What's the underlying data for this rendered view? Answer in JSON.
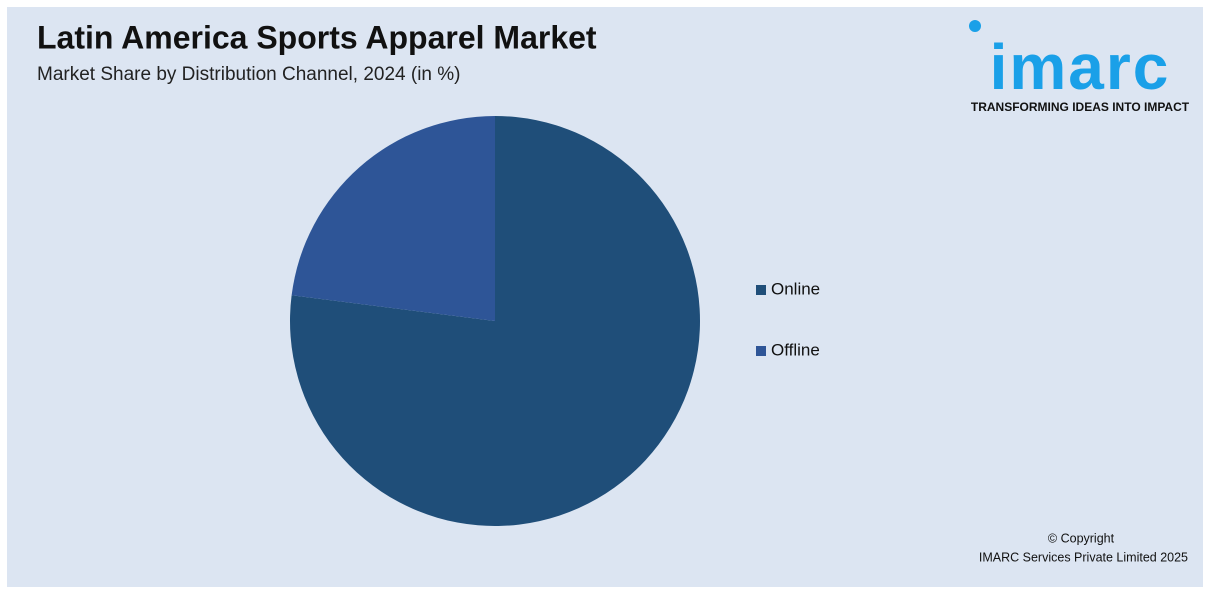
{
  "chart_data": {
    "type": "pie",
    "title": "Latin America Sports Apparel Market",
    "subtitle": "Market Share by Distribution Channel, 2024 (in %)",
    "categories": [
      "Online",
      "Offline"
    ],
    "values": [
      77,
      23
    ],
    "colors": [
      "#1f4e79",
      "#2e5597"
    ],
    "legend": "right"
  },
  "branding": {
    "logo": "imarc",
    "tagline": "TRANSFORMING IDEAS INTO IMPACT",
    "copyright": [
      "© Copyright",
      "IMARC Services Private Limited 2025"
    ]
  }
}
